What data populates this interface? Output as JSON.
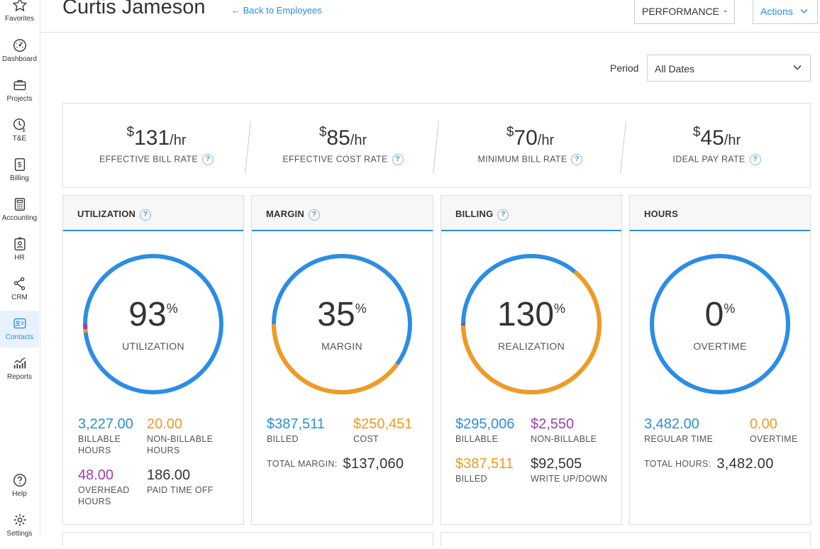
{
  "sidebar": {
    "items": [
      {
        "label": "Favorites",
        "icon": "star-icon"
      },
      {
        "label": "Dashboard",
        "icon": "gauge-icon"
      },
      {
        "label": "Projects",
        "icon": "briefcase-icon"
      },
      {
        "label": "T&E",
        "icon": "clock-dollar-icon"
      },
      {
        "label": "Billing",
        "icon": "invoice-icon"
      },
      {
        "label": "Accounting",
        "icon": "calculator-icon"
      },
      {
        "label": "HR",
        "icon": "badge-icon"
      },
      {
        "label": "CRM",
        "icon": "network-icon"
      },
      {
        "label": "Contacts",
        "icon": "contact-card-icon"
      },
      {
        "label": "Reports",
        "icon": "chart-icon"
      },
      {
        "label": "Help",
        "icon": "help-icon"
      },
      {
        "label": "Settings",
        "icon": "gear-icon"
      }
    ],
    "active": "Contacts"
  },
  "header": {
    "employee_name": "Curtis Jameson",
    "back_link": "← Back to Employees",
    "performance_button": "PERFORMANCE",
    "actions_button": "Actions"
  },
  "period": {
    "label": "Period",
    "value": "All Dates"
  },
  "rates": [
    {
      "currency": "$",
      "value": "131",
      "unit": "/hr",
      "label": "EFFECTIVE BILL RATE",
      "help": "?"
    },
    {
      "currency": "$",
      "value": "85",
      "unit": "/hr",
      "label": "EFFECTIVE COST RATE",
      "help": "?"
    },
    {
      "currency": "$",
      "value": "70",
      "unit": "/hr",
      "label": "MINIMUM BILL RATE",
      "help": "?"
    },
    {
      "currency": "$",
      "value": "45",
      "unit": "/hr",
      "label": "IDEAL PAY RATE",
      "help": "?"
    }
  ],
  "cards": {
    "utilization": {
      "title": "UTILIZATION",
      "help": "?",
      "value": "93",
      "pct": "%",
      "caption": "UTILIZATION",
      "billable_hours": "3,227.00",
      "billable_label_1": "BILLABLE",
      "billable_label_2": "HOURS",
      "nonbillable_hours": "20.00",
      "nonbillable_label_1": "NON-BILLABLE",
      "nonbillable_label_2": "HOURS",
      "overhead_hours": "48.00",
      "overhead_label_1": "OVERHEAD",
      "overhead_label_2": "HOURS",
      "pto_hours": "186.00",
      "pto_label": "PAID TIME OFF"
    },
    "margin": {
      "title": "MARGIN",
      "help": "?",
      "value": "35",
      "pct": "%",
      "caption": "MARGIN",
      "billed": "$387,511",
      "billed_label": "BILLED",
      "cost": "$250,451",
      "cost_label": "COST",
      "total_label": "TOTAL MARGIN:",
      "total_value": "$137,060"
    },
    "billing": {
      "title": "BILLING",
      "help": "?",
      "value": "130",
      "pct": "%",
      "caption": "REALIZATION",
      "billable": "$295,006",
      "billable_label": "BILLABLE",
      "nonbillable": "$2,550",
      "nonbillable_label": "NON-BILLABLE",
      "billed": "$387,511",
      "billed_label": "BILLED",
      "writeup": "$92,505",
      "writeup_label": "WRITE UP/DOWN"
    },
    "hours": {
      "title": "HOURS",
      "value": "0",
      "pct": "%",
      "caption": "OVERTIME",
      "regular": "3,482.00",
      "regular_label": "REGULAR TIME",
      "overtime": "0.00",
      "overtime_label": "OVERTIME",
      "total_label": "TOTAL HOURS:",
      "total_value": "3,482.00"
    }
  },
  "colors": {
    "accent_blue": "#2b8de5",
    "orange": "#f39a1e",
    "purple": "#9b3fb3"
  }
}
